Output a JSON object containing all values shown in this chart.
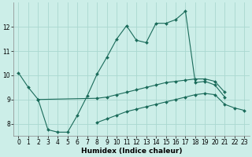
{
  "xlabel": "Humidex (Indice chaleur)",
  "background_color": "#cceee8",
  "grid_color": "#aad8d0",
  "line_color": "#1a6b5a",
  "x": [
    0,
    1,
    2,
    3,
    4,
    5,
    6,
    7,
    8,
    9,
    10,
    11,
    12,
    13,
    14,
    15,
    16,
    17,
    18,
    19,
    20,
    21,
    22,
    23
  ],
  "top_y": [
    10.1,
    9.5,
    9.0,
    7.75,
    7.65,
    7.65,
    8.35,
    9.15,
    10.05,
    10.75,
    11.5,
    12.05,
    11.45,
    11.35,
    12.15,
    12.15,
    12.3,
    12.65,
    9.7,
    9.75,
    9.6,
    9.1,
    null,
    null
  ],
  "mid_y": [
    null,
    null,
    9.0,
    null,
    null,
    null,
    null,
    null,
    9.05,
    9.1,
    9.2,
    9.3,
    9.4,
    9.5,
    9.6,
    9.7,
    9.75,
    9.8,
    9.85,
    9.85,
    9.75,
    9.3,
    null,
    null
  ],
  "bot_y": [
    null,
    null,
    null,
    null,
    null,
    null,
    null,
    null,
    8.05,
    8.2,
    8.35,
    8.5,
    8.6,
    8.7,
    8.8,
    8.9,
    9.0,
    9.1,
    9.2,
    9.25,
    9.2,
    8.8,
    8.65,
    8.55
  ],
  "ylim": [
    7.5,
    13.0
  ],
  "xlim": [
    -0.5,
    23.5
  ],
  "yticks": [
    8,
    9,
    10,
    11,
    12
  ],
  "xticks": [
    0,
    1,
    2,
    3,
    4,
    5,
    6,
    7,
    8,
    9,
    10,
    11,
    12,
    13,
    14,
    15,
    16,
    17,
    18,
    19,
    20,
    21,
    22,
    23
  ],
  "xlabel_fontsize": 6.5,
  "tick_fontsize": 5.5
}
